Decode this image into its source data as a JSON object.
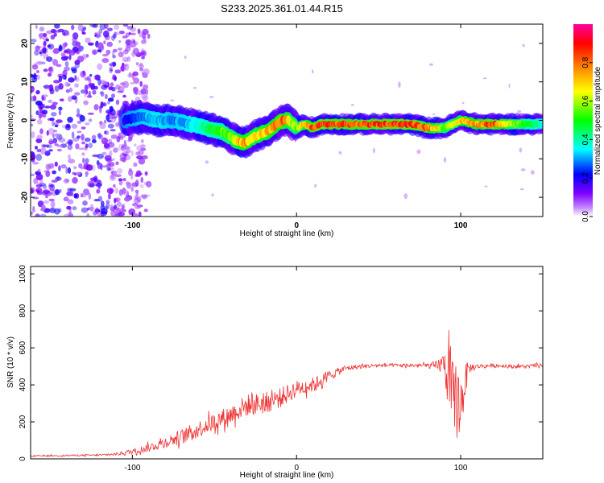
{
  "title": "S233.2025.361.01.44.R15",
  "chart_data": [
    {
      "id": "spectrogram",
      "type": "heatmap",
      "xlabel": "Height of straight line (km)",
      "ylabel": "Frequency (Hz)",
      "xlim": [
        -162,
        150
      ],
      "ylim": [
        -25,
        25
      ],
      "x_ticks": [
        -100,
        0,
        100
      ],
      "x_tick_labels": [
        "-100",
        "0",
        "100"
      ],
      "y_ticks": [
        20,
        10,
        0,
        -10,
        -20
      ],
      "y_tick_labels": [
        "20",
        "10",
        "0",
        "-10",
        "-20"
      ],
      "colorbar": {
        "label": "Normalized spectral amplitude",
        "range": [
          0,
          1
        ],
        "ticks": [
          0.0,
          0.2,
          0.4,
          0.6,
          0.8
        ],
        "tick_labels": [
          "0.0",
          "0.2",
          "0.4",
          "0.6",
          "0.8"
        ],
        "colors": [
          "#ffffff",
          "#a000ff",
          "#0000ff",
          "#00ffff",
          "#00ff00",
          "#ffff00",
          "#ff8000",
          "#ff0000",
          "#ff00a0"
        ]
      },
      "ridge": {
        "x": [
          -105,
          -95,
          -85,
          -75,
          -65,
          -55,
          -45,
          -38,
          -32,
          -25,
          -18,
          -12,
          -8,
          -5,
          0,
          5,
          10,
          15,
          25,
          40,
          55,
          70,
          80,
          90,
          95,
          100,
          110,
          120,
          130,
          140,
          150
        ],
        "freq": [
          0,
          1,
          0,
          0,
          -1,
          -2,
          -3,
          -5,
          -6,
          -4,
          -3,
          -1,
          0,
          0,
          -2,
          -1,
          -2,
          -1,
          -1,
          -1,
          -1,
          -1,
          -2,
          -2,
          -1,
          0,
          -1,
          -1,
          -1,
          -1,
          -1
        ],
        "amplitude": [
          0.2,
          0.3,
          0.35,
          0.3,
          0.35,
          0.45,
          0.55,
          0.65,
          0.8,
          0.7,
          0.75,
          0.8,
          0.85,
          0.7,
          0.6,
          0.75,
          0.85,
          0.9,
          0.85,
          0.85,
          0.9,
          0.9,
          0.85,
          0.6,
          0.6,
          0.75,
          0.8,
          0.9,
          0.65,
          0.5,
          0.4
        ]
      },
      "noise_region": {
        "x_range": [
          -162,
          -100
        ],
        "freq_range": [
          -25,
          25
        ],
        "amplitude_range": [
          0.0,
          0.3
        ]
      }
    },
    {
      "id": "snr",
      "type": "line",
      "xlabel": "Height of straight line (km)",
      "ylabel": "SNR (10 * v/v)",
      "xlim": [
        -162,
        150
      ],
      "ylim": [
        0,
        1040
      ],
      "x_ticks": [
        -100,
        0,
        100
      ],
      "x_tick_labels": [
        "-100",
        "0",
        "100"
      ],
      "y_ticks": [
        0,
        200,
        400,
        600,
        800,
        1000
      ],
      "y_tick_labels": [
        "0",
        "200",
        "400",
        "600",
        "800",
        "1000"
      ],
      "line_color": "#ee3333",
      "series": [
        {
          "name": "SNR",
          "x": [
            -162,
            -140,
            -120,
            -110,
            -100,
            -90,
            -80,
            -70,
            -60,
            -50,
            -40,
            -30,
            -20,
            -10,
            0,
            10,
            20,
            30,
            40,
            50,
            60,
            70,
            80,
            85,
            90,
            92,
            95,
            98,
            100,
            102,
            105,
            110,
            120,
            130,
            140,
            150
          ],
          "y": [
            15,
            18,
            20,
            25,
            40,
            60,
            90,
            120,
            160,
            200,
            240,
            290,
            300,
            330,
            380,
            400,
            450,
            490,
            500,
            505,
            505,
            505,
            505,
            500,
            520,
            450,
            300,
            320,
            280,
            400,
            490,
            500,
            505,
            500,
            500,
            505
          ],
          "noise_amplitude": [
            8,
            8,
            10,
            15,
            30,
            45,
            60,
            80,
            90,
            100,
            110,
            120,
            120,
            110,
            90,
            80,
            60,
            30,
            25,
            20,
            20,
            20,
            25,
            60,
            120,
            350,
            480,
            420,
            380,
            250,
            60,
            25,
            20,
            20,
            20,
            20
          ]
        }
      ]
    }
  ]
}
